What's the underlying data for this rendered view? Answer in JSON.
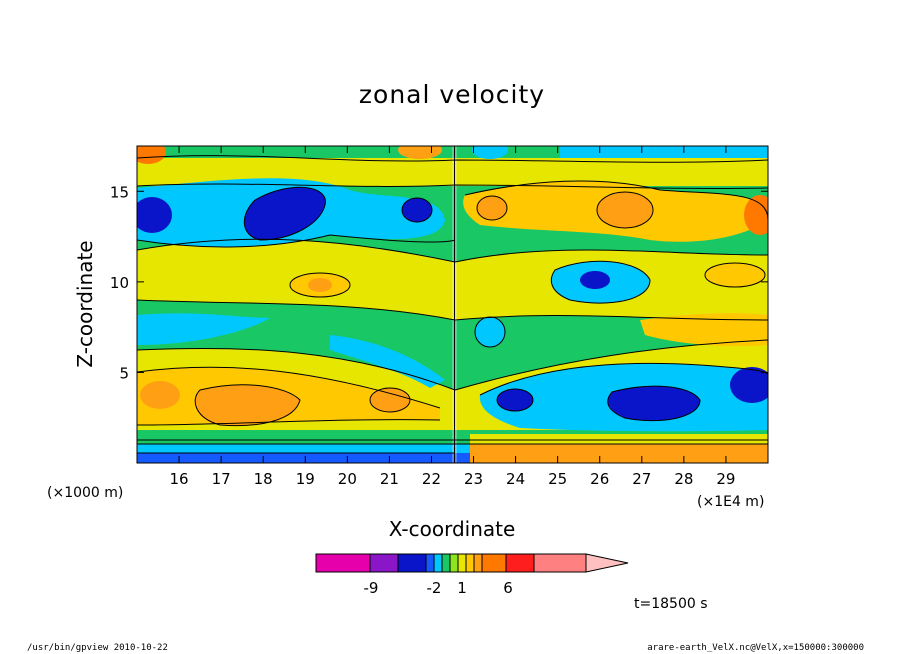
{
  "chart_data": {
    "type": "heatmap",
    "title": "zonal velocity",
    "xlabel": "X-coordinate",
    "ylabel": "Z-coordinate",
    "x_unit": "(×1000 m)",
    "x_unit2": "(×1E4 m)",
    "x_ticks": [
      "16",
      "17",
      "18",
      "19",
      "20",
      "21",
      "22",
      "23",
      "24",
      "25",
      "26",
      "27",
      "28",
      "29"
    ],
    "y_ticks": [
      "5",
      "10",
      "15"
    ],
    "xlim": [
      150000,
      300000
    ],
    "ylim": [
      0,
      17500
    ],
    "colorbar": {
      "labels": [
        "-9",
        "-2",
        "1",
        "6"
      ],
      "colors": [
        "#e600ac",
        "#8a16c8",
        "#0a14c8",
        "#145aff",
        "#00c8ff",
        "#19c864",
        "#8ce61e",
        "#e6e600",
        "#ffc800",
        "#ffa014",
        "#ff7800",
        "#ff1e1e",
        "#ff8080",
        "#ffc0c0"
      ]
    },
    "time_label": "t=18500 s",
    "footer_left": "/usr/bin/gpview  2010-10-22",
    "footer_right": "arare-earth_VelX.nc@VelX,x=150000:300000"
  }
}
